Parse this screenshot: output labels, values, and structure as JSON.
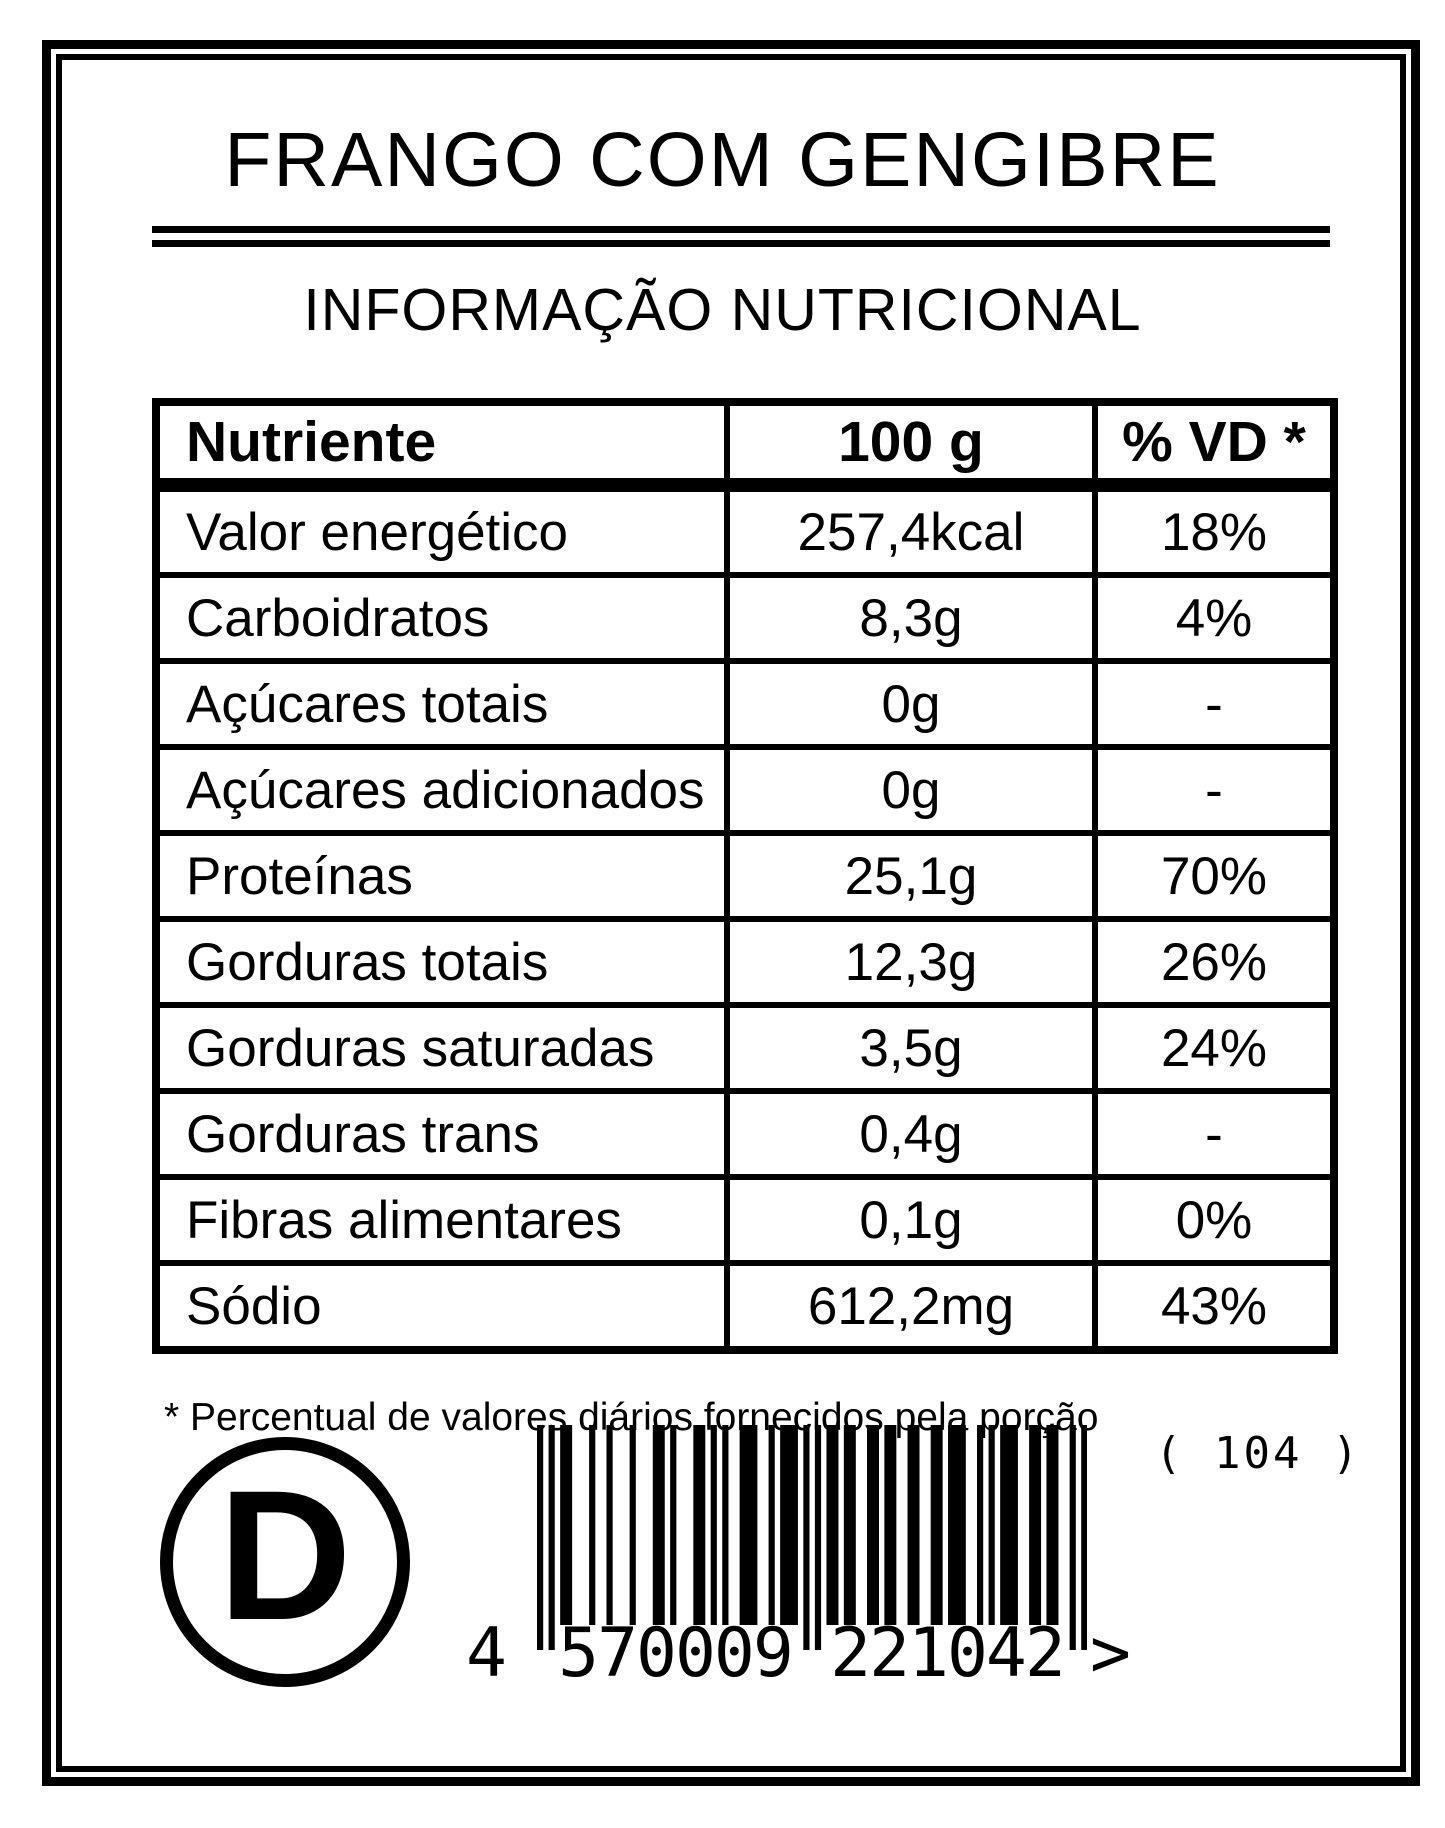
{
  "page": {
    "background": "#ffffff",
    "ink": "#000000"
  },
  "label": {
    "title": "FRANGO COM GENGIBRE",
    "section_title": "INFORMAÇÃO NUTRICIONAL",
    "table": {
      "headers": [
        "Nutriente",
        "100 g",
        "% VD *"
      ],
      "rows": [
        {
          "nutrient": "Valor energético",
          "amount": "257,4kcal",
          "daily_value": "18%"
        },
        {
          "nutrient": "Carboidratos",
          "amount": "8,3g",
          "daily_value": "4%"
        },
        {
          "nutrient": "Açúcares totais",
          "amount": "0g",
          "daily_value": "-"
        },
        {
          "nutrient": "Açúcares adicionados",
          "amount": "0g",
          "daily_value": "-"
        },
        {
          "nutrient": "Proteínas",
          "amount": "25,1g",
          "daily_value": "70%"
        },
        {
          "nutrient": "Gorduras totais",
          "amount": "12,3g",
          "daily_value": "26%"
        },
        {
          "nutrient": "Gorduras saturadas",
          "amount": "3,5g",
          "daily_value": "24%"
        },
        {
          "nutrient": "Gorduras trans",
          "amount": "0,4g",
          "daily_value": "-"
        },
        {
          "nutrient": "Fibras alimentares",
          "amount": "0,1g",
          "daily_value": "0%"
        },
        {
          "nutrient": "Sódio",
          "amount": "612,2mg",
          "daily_value": "43%"
        }
      ]
    },
    "footnote": "* Percentual de valores diários fornecidos pela porção",
    "mark_letter": "D",
    "side_code": "( 104 )",
    "barcode": {
      "value": "4570009221042",
      "display": {
        "first": "4",
        "left_group": "570009",
        "right_group": "221042",
        "suffix": ">"
      },
      "modules": "10101100010010001000110100011010100111001011101010110110011011001100110111001010111001101100101",
      "long_bar_indices": [
        0,
        2,
        46,
        48,
        92,
        94
      ]
    }
  }
}
